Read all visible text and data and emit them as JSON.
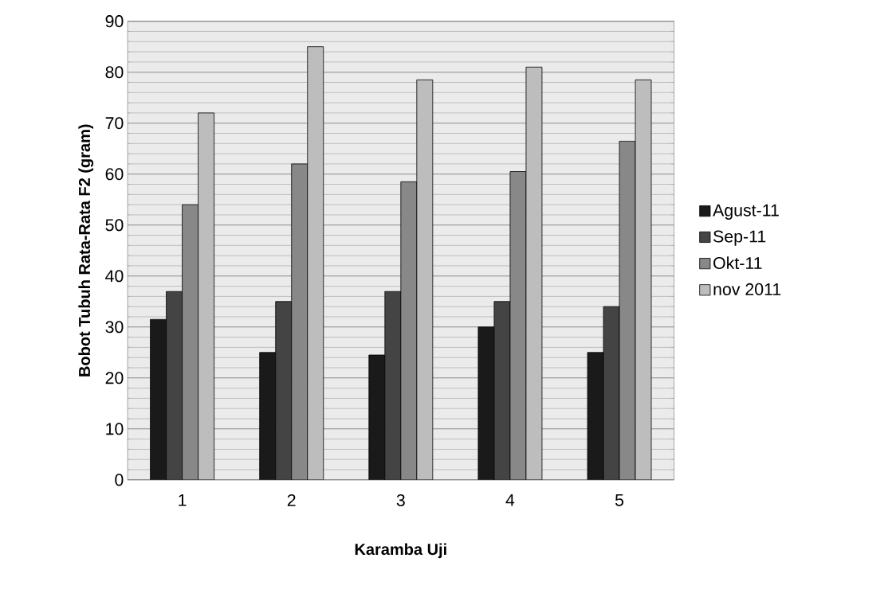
{
  "chart_data": {
    "type": "bar",
    "xlabel": "Karamba Uji",
    "ylabel": "Bobot Tubuh Rata-Rata F2 (gram)",
    "categories": [
      "1",
      "2",
      "3",
      "4",
      "5"
    ],
    "series": [
      {
        "name": "Agust-11",
        "color": "#1a1a1a",
        "values": [
          31.5,
          25,
          24.5,
          30,
          25
        ]
      },
      {
        "name": "Sep-11",
        "color": "#444444",
        "values": [
          37,
          35,
          37,
          35,
          34
        ]
      },
      {
        "name": "Okt-11",
        "color": "#888888",
        "values": [
          54,
          62,
          58.5,
          60.5,
          66.5
        ]
      },
      {
        "name": "nov 2011",
        "color": "#bdbdbd",
        "values": [
          72,
          85,
          78.5,
          81,
          78.5
        ]
      }
    ],
    "ylim": [
      0,
      90
    ],
    "yticks": [
      0,
      10,
      20,
      30,
      40,
      50,
      60,
      70,
      80,
      90
    ],
    "grid": "y",
    "legend": "right"
  }
}
